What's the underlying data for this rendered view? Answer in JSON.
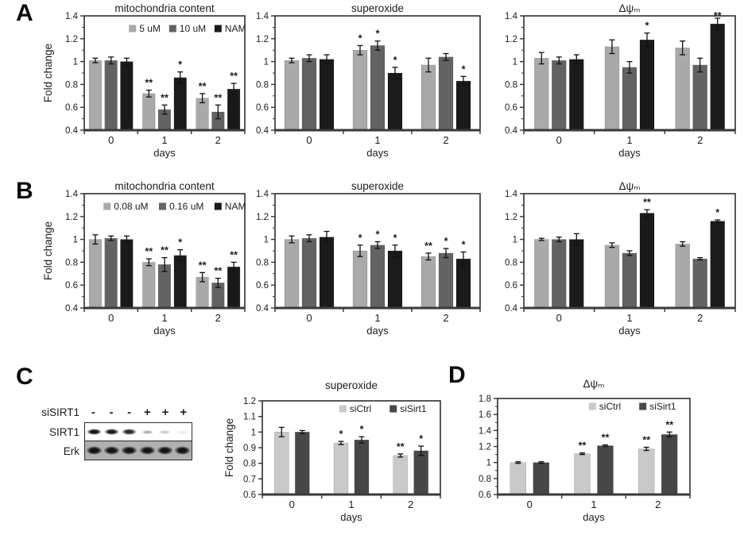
{
  "panel_labels": {
    "A": "A",
    "B": "B",
    "C": "C",
    "D": "D"
  },
  "chart_data": [
    {
      "panel": "A",
      "type": "bar",
      "title": "mitochondria content",
      "ylabel": "Fold change",
      "xlabel": "days",
      "categories": [
        "0",
        "1",
        "2"
      ],
      "ylim": [
        0.4,
        1.4
      ],
      "ystep": 0.2,
      "grid": false,
      "legend": true,
      "legend_position": "top-right",
      "series": [
        {
          "name": "5 uM",
          "color": "#a9a9a9",
          "values": [
            1.01,
            0.72,
            0.68
          ],
          "err": [
            0.02,
            0.03,
            0.04
          ],
          "sig": [
            "",
            "**",
            "**"
          ]
        },
        {
          "name": "10 uM",
          "color": "#636363",
          "values": [
            1.01,
            0.58,
            0.56
          ],
          "err": [
            0.03,
            0.04,
            0.06
          ],
          "sig": [
            "",
            "**",
            "**"
          ]
        },
        {
          "name": "NAM",
          "color": "#1a1a1a",
          "values": [
            1.0,
            0.86,
            0.76
          ],
          "err": [
            0.03,
            0.05,
            0.05
          ],
          "sig": [
            "",
            "*",
            "**"
          ]
        }
      ]
    },
    {
      "panel": "A",
      "type": "bar",
      "title": "superoxide",
      "ylabel": "",
      "xlabel": "days",
      "categories": [
        "0",
        "1",
        "2"
      ],
      "ylim": [
        0.4,
        1.4
      ],
      "ystep": 0.2,
      "grid": false,
      "legend": false,
      "series": [
        {
          "name": "5 uM",
          "color": "#a9a9a9",
          "values": [
            1.01,
            1.1,
            0.97
          ],
          "err": [
            0.02,
            0.04,
            0.06
          ],
          "sig": [
            "",
            "*",
            ""
          ]
        },
        {
          "name": "10 uM",
          "color": "#636363",
          "values": [
            1.03,
            1.14,
            1.04
          ],
          "err": [
            0.03,
            0.04,
            0.03
          ],
          "sig": [
            "",
            "*",
            ""
          ]
        },
        {
          "name": "NAM",
          "color": "#1a1a1a",
          "values": [
            1.02,
            0.9,
            0.83
          ],
          "err": [
            0.04,
            0.05,
            0.04
          ],
          "sig": [
            "",
            "*",
            "*"
          ]
        }
      ]
    },
    {
      "panel": "A",
      "type": "bar",
      "title": "Δψₘ",
      "ylabel": "",
      "xlabel": "days",
      "categories": [
        "0",
        "1",
        "2"
      ],
      "ylim": [
        0.4,
        1.4
      ],
      "ystep": 0.2,
      "grid": false,
      "legend": false,
      "series": [
        {
          "name": "5 uM",
          "color": "#a9a9a9",
          "values": [
            1.03,
            1.13,
            1.12
          ],
          "err": [
            0.05,
            0.06,
            0.06
          ],
          "sig": [
            "",
            "",
            ""
          ]
        },
        {
          "name": "10 uM",
          "color": "#636363",
          "values": [
            1.01,
            0.95,
            0.97
          ],
          "err": [
            0.03,
            0.05,
            0.06
          ],
          "sig": [
            "",
            "",
            ""
          ]
        },
        {
          "name": "NAM",
          "color": "#1a1a1a",
          "values": [
            1.02,
            1.19,
            1.33
          ],
          "err": [
            0.04,
            0.06,
            0.05
          ],
          "sig": [
            "",
            "*",
            "**"
          ]
        }
      ]
    },
    {
      "panel": "B",
      "type": "bar",
      "title": "mitochondria content",
      "ylabel": "Fold change",
      "xlabel": "days",
      "categories": [
        "0",
        "1",
        "2"
      ],
      "ylim": [
        0.4,
        1.4
      ],
      "ystep": 0.2,
      "grid": false,
      "legend": true,
      "legend_position": "top-right",
      "series": [
        {
          "name": "0.08 uM",
          "color": "#a9a9a9",
          "values": [
            1.0,
            0.8,
            0.67
          ],
          "err": [
            0.04,
            0.03,
            0.04
          ],
          "sig": [
            "",
            "**",
            "**"
          ]
        },
        {
          "name": "0.16 uM",
          "color": "#636363",
          "values": [
            1.01,
            0.78,
            0.62
          ],
          "err": [
            0.02,
            0.06,
            0.04
          ],
          "sig": [
            "",
            "**",
            "**"
          ]
        },
        {
          "name": "NAM",
          "color": "#1a1a1a",
          "values": [
            1.0,
            0.86,
            0.76
          ],
          "err": [
            0.03,
            0.05,
            0.04
          ],
          "sig": [
            "",
            "*",
            "**"
          ]
        }
      ]
    },
    {
      "panel": "B",
      "type": "bar",
      "title": "superoxide",
      "ylabel": "",
      "xlabel": "days",
      "categories": [
        "0",
        "1",
        "2"
      ],
      "ylim": [
        0.4,
        1.4
      ],
      "ystep": 0.2,
      "grid": false,
      "legend": false,
      "series": [
        {
          "name": "0.08 uM",
          "color": "#a9a9a9",
          "values": [
            1.0,
            0.9,
            0.85
          ],
          "err": [
            0.03,
            0.05,
            0.03
          ],
          "sig": [
            "",
            "*",
            "**"
          ]
        },
        {
          "name": "0.16 uM",
          "color": "#636363",
          "values": [
            1.01,
            0.95,
            0.88
          ],
          "err": [
            0.03,
            0.03,
            0.04
          ],
          "sig": [
            "",
            "*",
            "*"
          ]
        },
        {
          "name": "NAM",
          "color": "#1a1a1a",
          "values": [
            1.02,
            0.9,
            0.83
          ],
          "err": [
            0.05,
            0.05,
            0.06
          ],
          "sig": [
            "",
            "*",
            "*"
          ]
        }
      ]
    },
    {
      "panel": "B",
      "type": "bar",
      "title": "Δψₘ",
      "ylabel": "",
      "xlabel": "days",
      "categories": [
        "0",
        "1",
        "2"
      ],
      "ylim": [
        0.4,
        1.4
      ],
      "ystep": 0.2,
      "grid": false,
      "legend": false,
      "series": [
        {
          "name": "0.08 uM",
          "color": "#a9a9a9",
          "values": [
            1.0,
            0.95,
            0.96
          ],
          "err": [
            0.01,
            0.02,
            0.02
          ],
          "sig": [
            "",
            "",
            ""
          ]
        },
        {
          "name": "0.16 uM",
          "color": "#636363",
          "values": [
            1.0,
            0.88,
            0.83
          ],
          "err": [
            0.02,
            0.02,
            0.01
          ],
          "sig": [
            "",
            "",
            ""
          ]
        },
        {
          "name": "NAM",
          "color": "#1a1a1a",
          "values": [
            1.0,
            1.23,
            1.16
          ],
          "err": [
            0.05,
            0.03,
            0.01
          ],
          "sig": [
            "",
            "**",
            "*"
          ]
        }
      ]
    },
    {
      "panel": "C",
      "type": "bar",
      "title": "superoxide",
      "ylabel": "Fold change",
      "xlabel": "days",
      "categories": [
        "0",
        "1",
        "2"
      ],
      "ylim": [
        0.6,
        1.2
      ],
      "ystep": 0.1,
      "grid": false,
      "legend": true,
      "legend_position": "top-right",
      "series": [
        {
          "name": "siCtrl",
          "color": "#c9c9c9",
          "values": [
            1.0,
            0.93,
            0.85
          ],
          "err": [
            0.03,
            0.01,
            0.01
          ],
          "sig": [
            "",
            "*",
            "**"
          ]
        },
        {
          "name": "siSirt1",
          "color": "#474747",
          "values": [
            1.0,
            0.95,
            0.88
          ],
          "err": [
            0.01,
            0.02,
            0.03
          ],
          "sig": [
            "",
            "*",
            "*"
          ]
        }
      ]
    },
    {
      "panel": "D",
      "type": "bar",
      "title": "Δψₘ",
      "ylabel": "",
      "xlabel": "days",
      "categories": [
        "0",
        "1",
        "2"
      ],
      "ylim": [
        0.6,
        1.8
      ],
      "ystep": 0.2,
      "grid": false,
      "legend": true,
      "legend_position": "top-right",
      "series": [
        {
          "name": "siCtrl",
          "color": "#c9c9c9",
          "values": [
            1.0,
            1.11,
            1.17
          ],
          "err": [
            0.01,
            0.01,
            0.02
          ],
          "sig": [
            "",
            "**",
            "**"
          ]
        },
        {
          "name": "siSirt1",
          "color": "#474747",
          "values": [
            1.0,
            1.21,
            1.35
          ],
          "err": [
            0.01,
            0.01,
            0.03
          ],
          "sig": [
            "",
            "**",
            "**"
          ]
        }
      ]
    }
  ],
  "blot": {
    "condition_label": "siSIRT1",
    "lane_signs": [
      "-",
      "-",
      "-",
      "+",
      "+",
      "+"
    ],
    "rows": [
      {
        "label": "SIRT1",
        "intensities": [
          0.95,
          0.92,
          0.85,
          0.32,
          0.2,
          0.08
        ],
        "bg": "#ffffff"
      },
      {
        "label": "Erk",
        "intensities": [
          0.95,
          0.95,
          0.95,
          0.95,
          0.95,
          0.95
        ],
        "bg": "#b0b0b0"
      }
    ]
  }
}
